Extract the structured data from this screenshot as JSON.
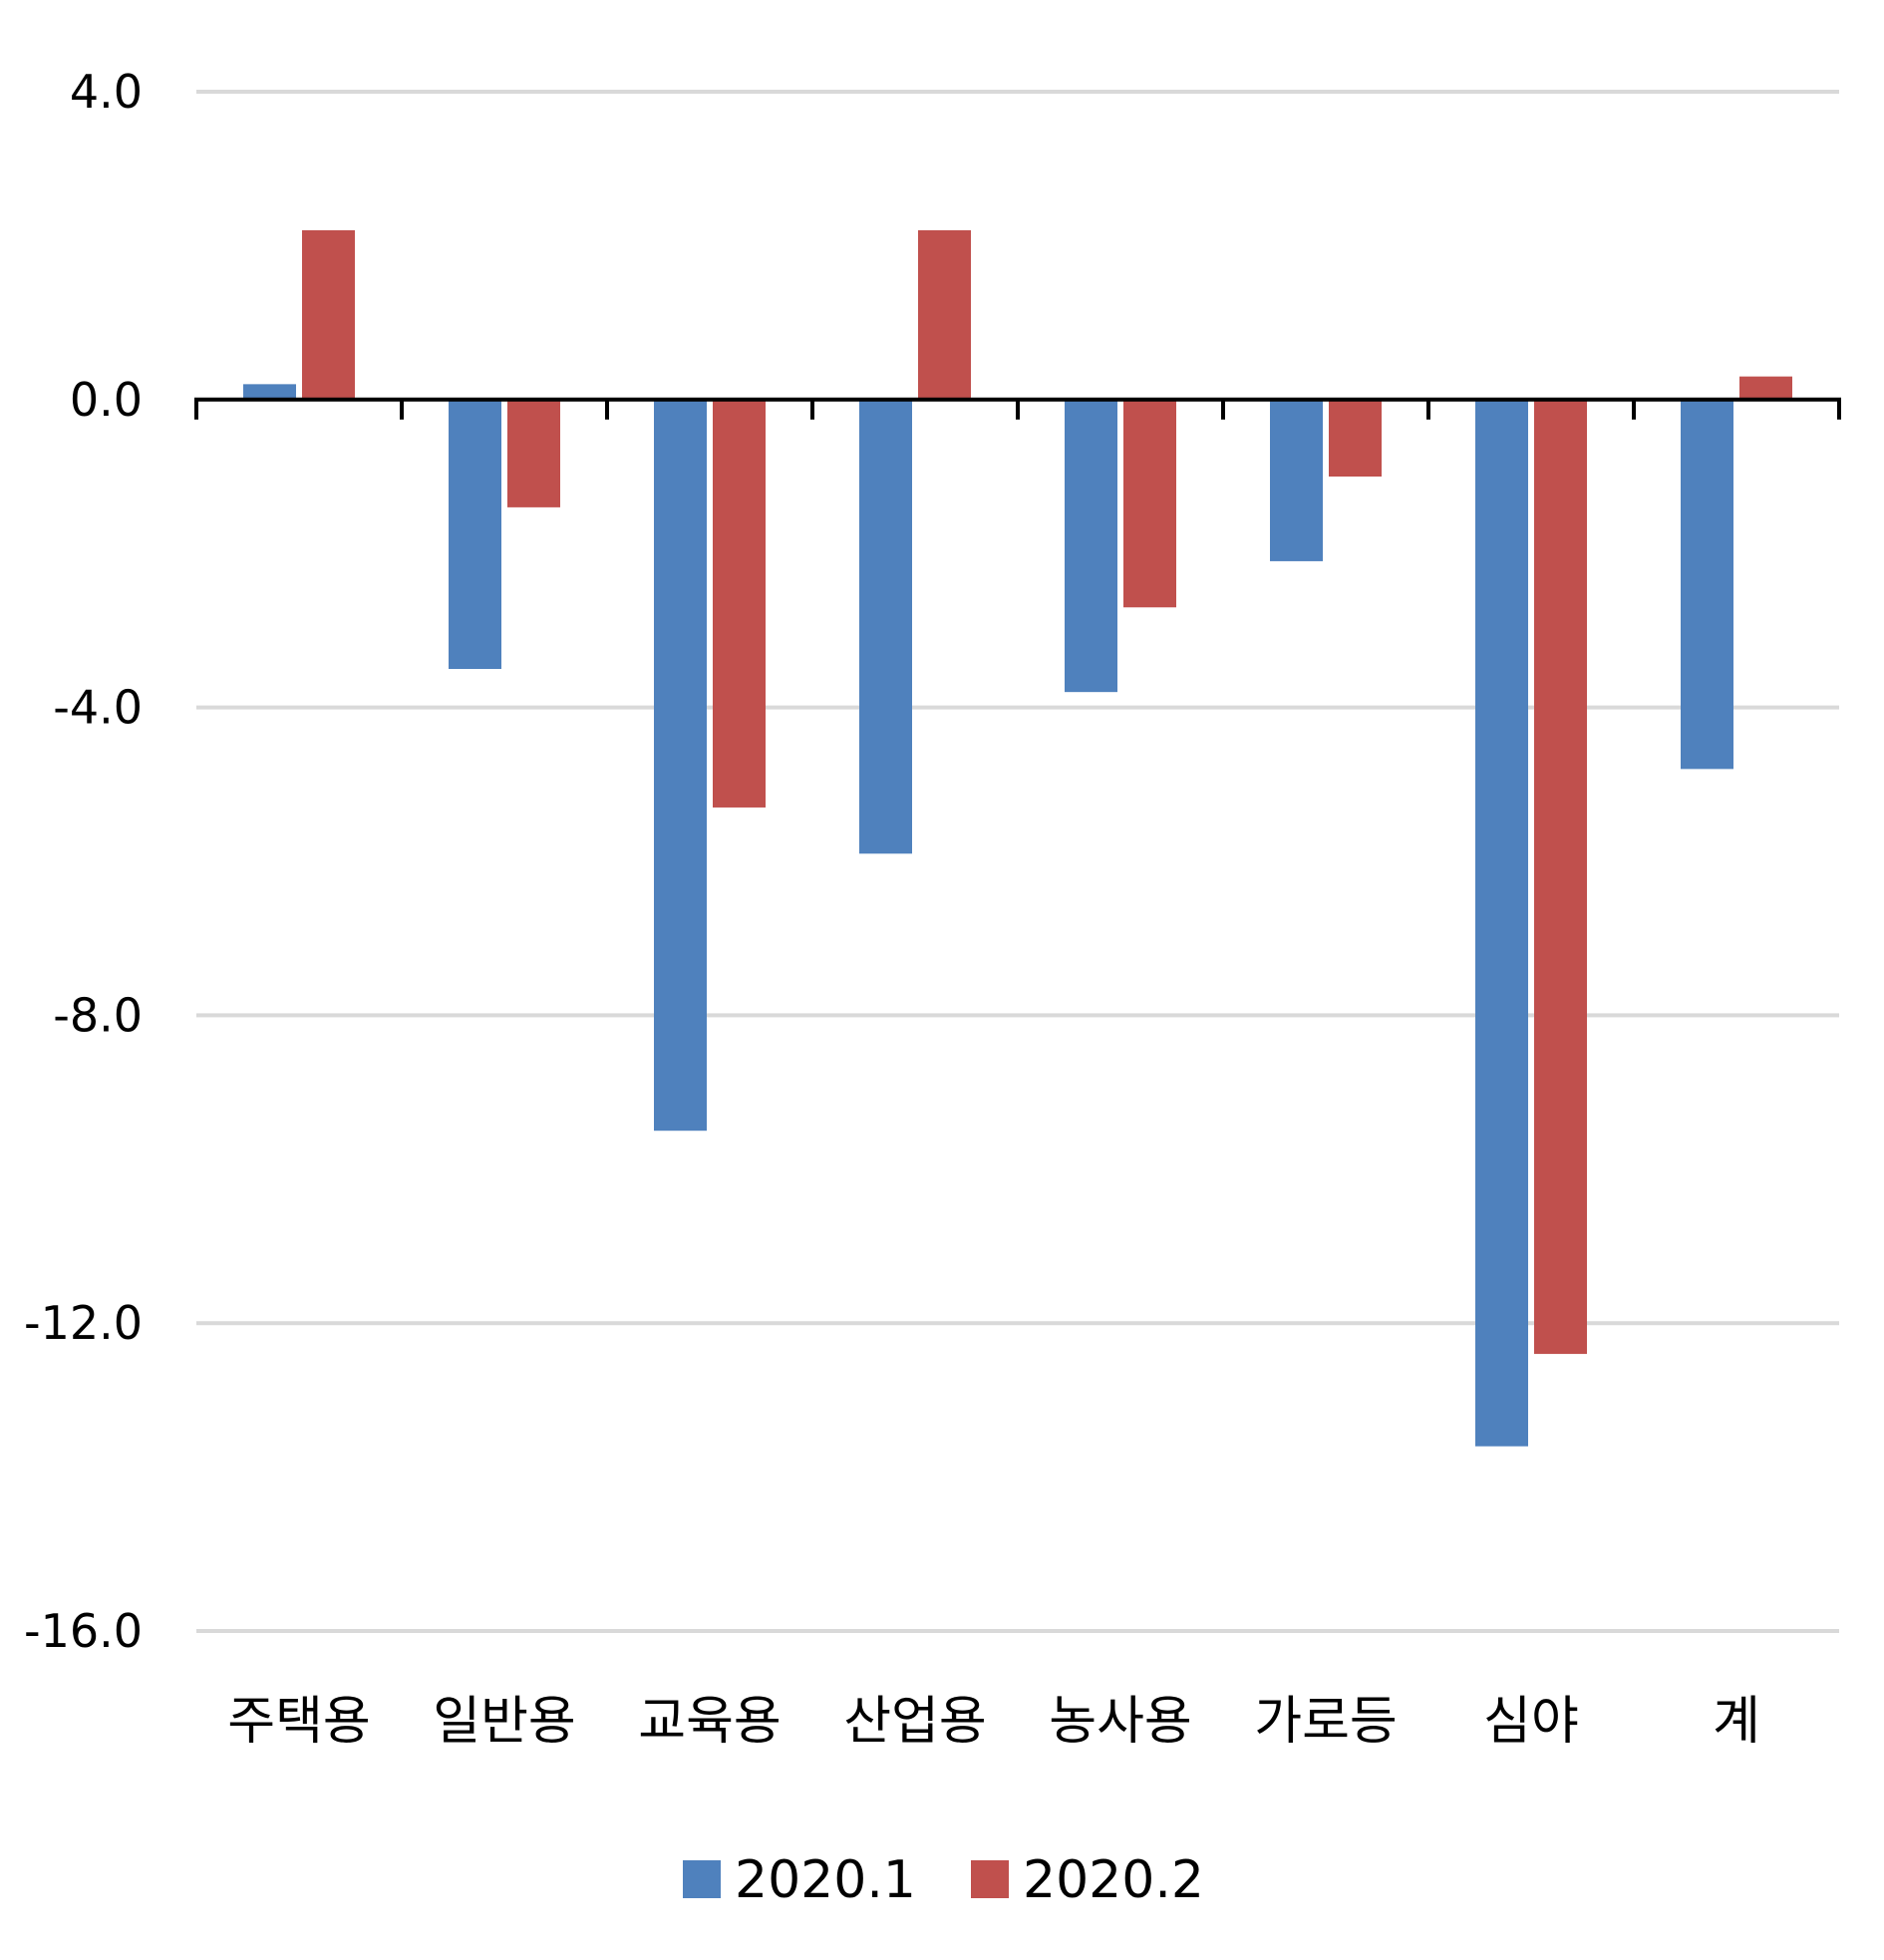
{
  "chart_data": {
    "type": "bar",
    "categories": [
      "주택용",
      "일반용",
      "교육용",
      "산업용",
      "농사용",
      "가로등",
      "심야",
      "계"
    ],
    "series": [
      {
        "name": "2020.1",
        "color": "#4f81bd",
        "values": [
          0.2,
          -3.5,
          -9.5,
          -5.9,
          -3.8,
          -2.1,
          -13.6,
          -4.8
        ]
      },
      {
        "name": "2020.2",
        "color": "#c0504d",
        "values": [
          2.2,
          -1.4,
          -5.3,
          2.2,
          -2.7,
          -1.0,
          -12.4,
          0.3
        ]
      }
    ],
    "ylim": [
      -16,
      4
    ],
    "yticks": [
      "4.0",
      "0.0",
      "-4.0",
      "-8.0",
      "-12.0",
      "-16.0"
    ],
    "grid": true,
    "legend_position": "bottom"
  }
}
